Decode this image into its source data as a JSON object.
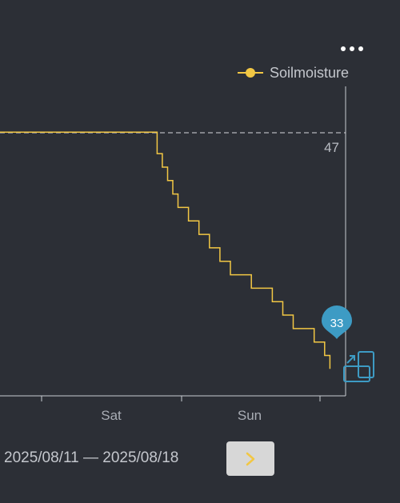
{
  "menu": {
    "icon": "more-horizontal-icon"
  },
  "chart_data": {
    "type": "line",
    "series": [
      {
        "name": "Soilmoisture",
        "color": "#f2c744",
        "points": [
          [
            "2025-08-16T08:00",
            48.6
          ],
          [
            "2025-08-16T22:30",
            48.6
          ],
          [
            "2025-08-16T23:00",
            47
          ],
          [
            "2025-08-16T23:30",
            46
          ],
          [
            "2025-08-17T00:00",
            45
          ],
          [
            "2025-08-17T00:30",
            44
          ],
          [
            "2025-08-17T01:00",
            43
          ],
          [
            "2025-08-17T02:00",
            42
          ],
          [
            "2025-08-17T03:00",
            41
          ],
          [
            "2025-08-17T04:00",
            40
          ],
          [
            "2025-08-17T05:00",
            39
          ],
          [
            "2025-08-17T06:00",
            38
          ],
          [
            "2025-08-17T07:30",
            38
          ],
          [
            "2025-08-17T08:00",
            37
          ],
          [
            "2025-08-17T09:30",
            37
          ],
          [
            "2025-08-17T10:00",
            36
          ],
          [
            "2025-08-17T11:00",
            35
          ],
          [
            "2025-08-17T12:00",
            34
          ],
          [
            "2025-08-17T13:00",
            34
          ],
          [
            "2025-08-17T14:00",
            33
          ],
          [
            "2025-08-17T15:00",
            32
          ],
          [
            "2025-08-17T15:30",
            31
          ]
        ]
      }
    ],
    "x_ticks": [
      "Sat",
      "Sun"
    ],
    "threshold": {
      "value": 47,
      "label": "47",
      "style": "dashed"
    },
    "marker": {
      "label": "33",
      "value": 33,
      "color": "#3d9bc4"
    },
    "x_range": [
      "2025-08-16T08:00",
      "2025-08-17T17:00"
    ],
    "y_range": [
      29,
      52
    ],
    "legend": {
      "position": "top-right",
      "entries": [
        "Soilmoisture"
      ]
    }
  },
  "date_range": {
    "start": "2025/08/11",
    "separator": "—",
    "end": "2025/08/18"
  },
  "next_button": {
    "icon": "chevron-right-icon",
    "color": "#f2c744"
  },
  "rotate_icon": {
    "icon": "rotate-screen-icon",
    "color": "#3d9bc4"
  }
}
